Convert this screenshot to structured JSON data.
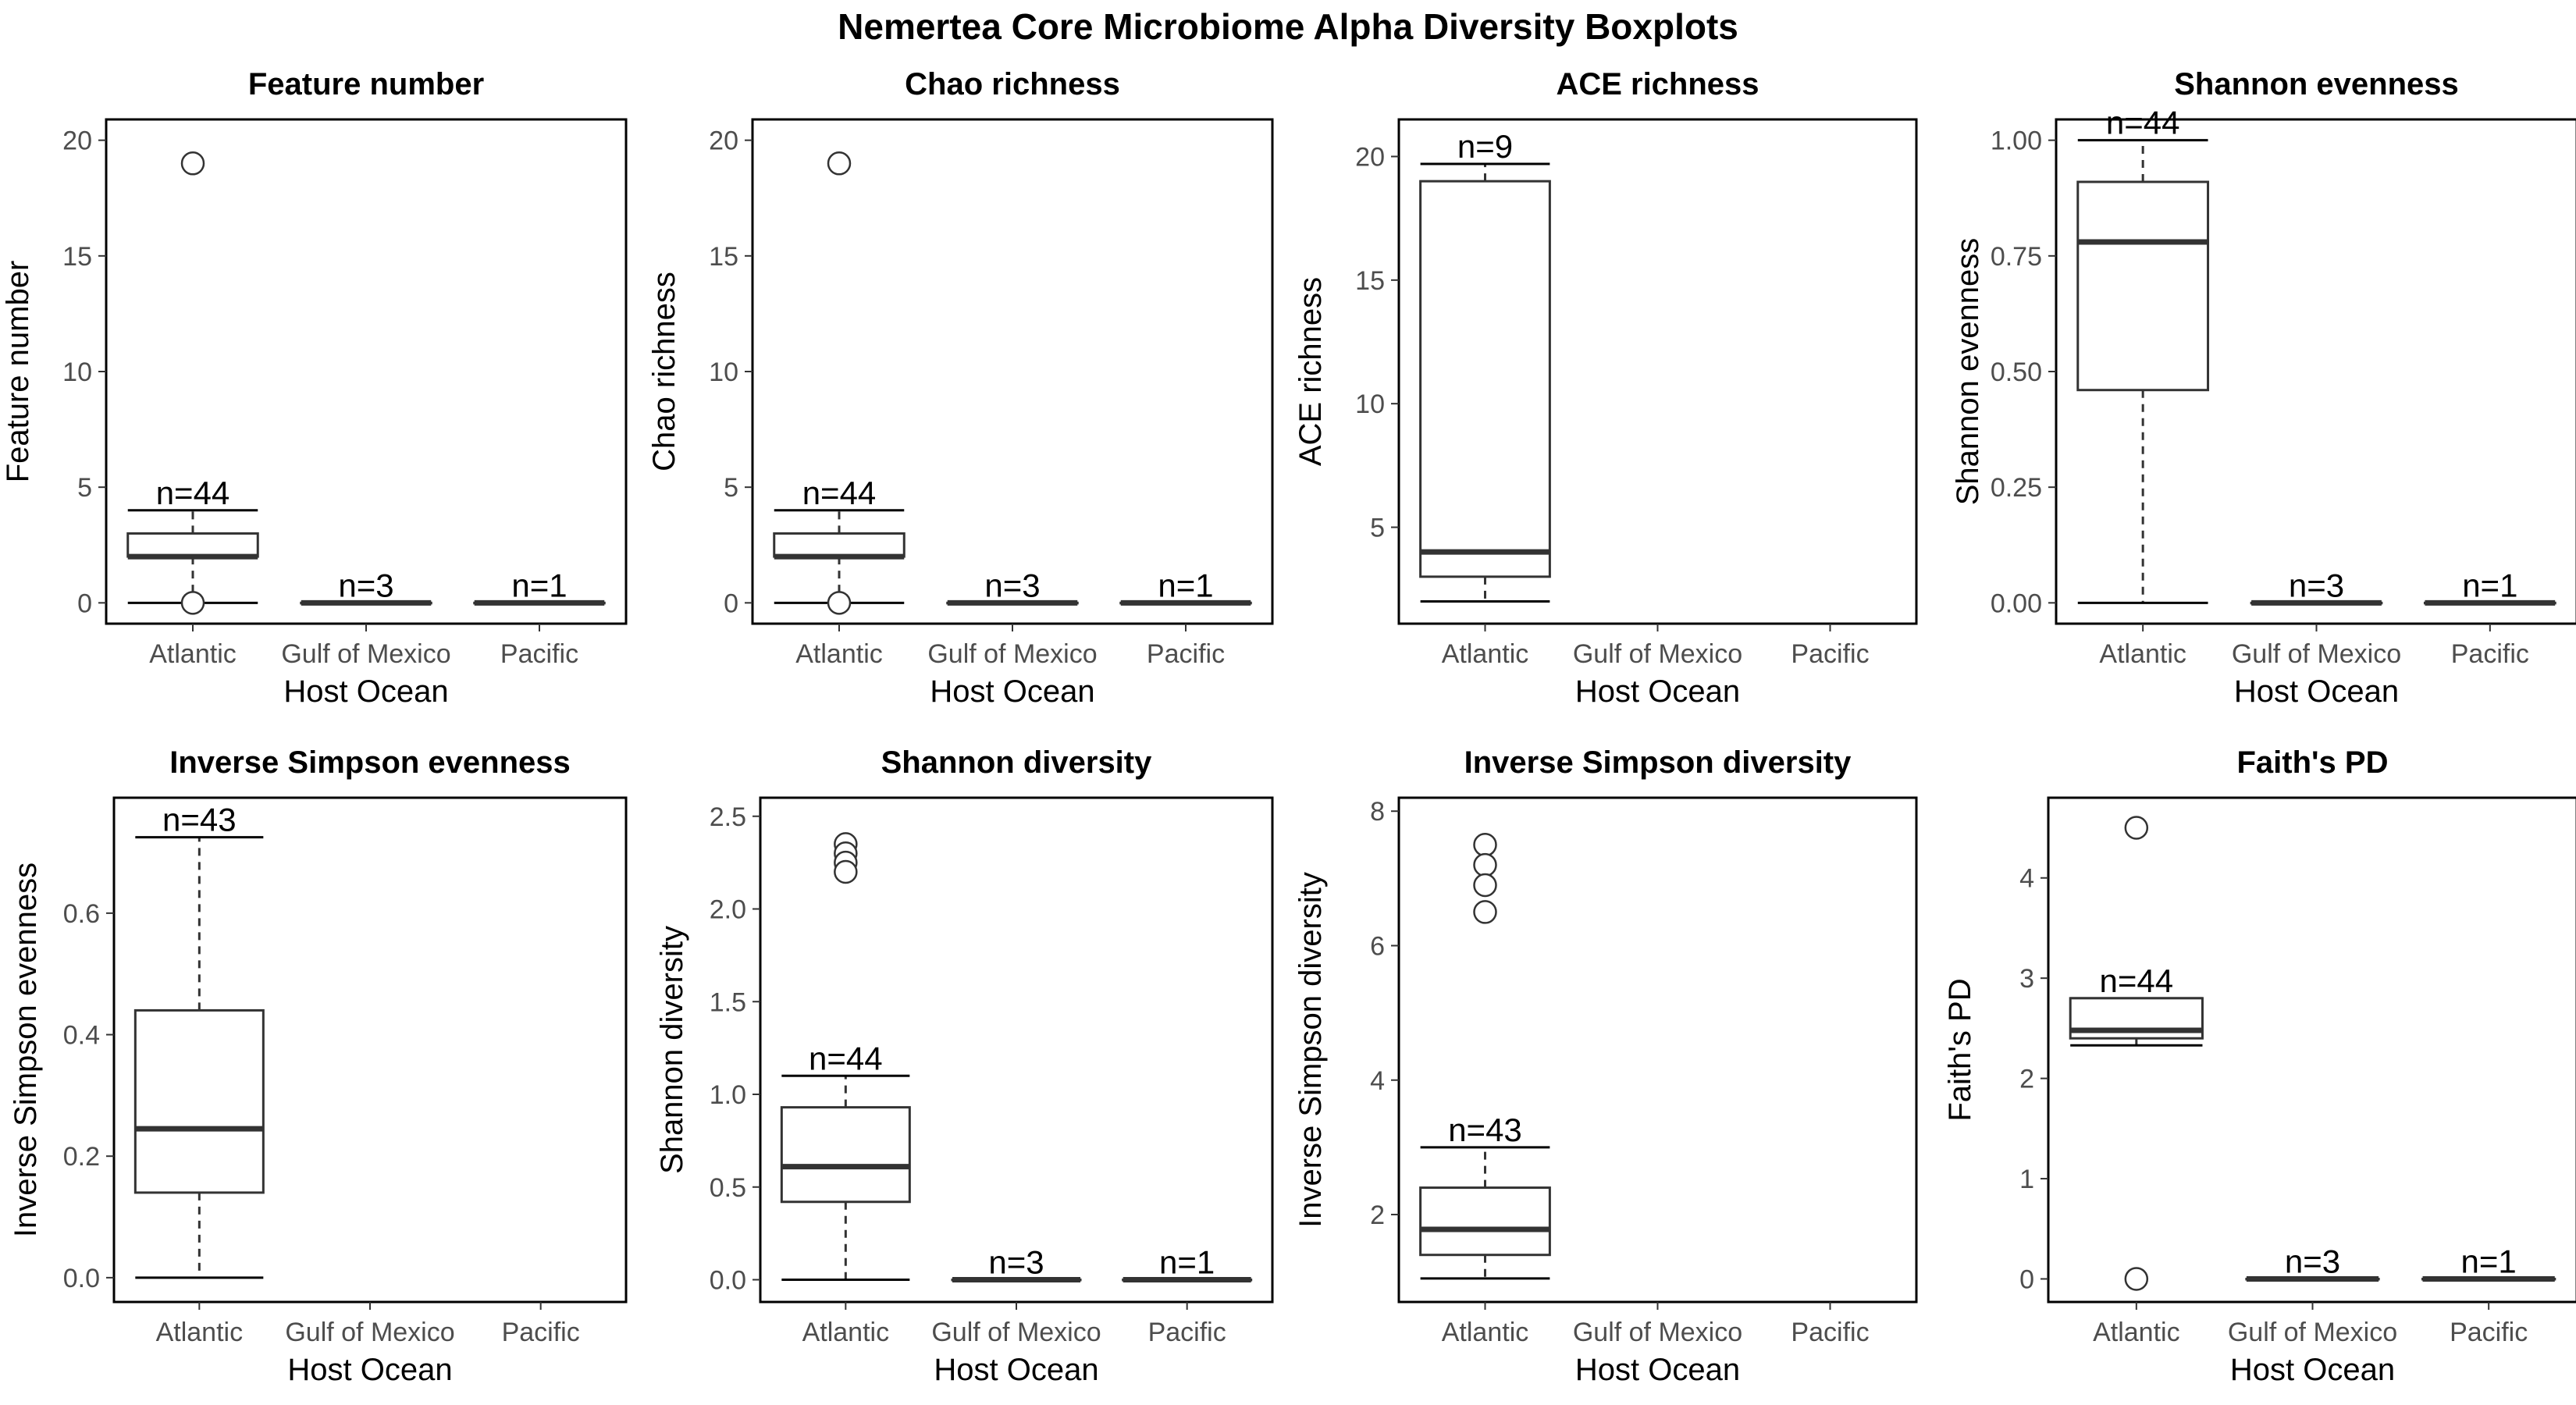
{
  "figure_title": "Nemertea Core Microbiome Alpha Diversity Boxplots",
  "chart_data": [
    {
      "type": "boxplot",
      "title": "Feature number",
      "xlabel": "Host Ocean",
      "ylabel": "Feature number",
      "categories": [
        "Atlantic",
        "Gulf of Mexico",
        "Pacific"
      ],
      "ylim": [
        -0.9,
        20.9
      ],
      "yticks": [
        0,
        5,
        10,
        15,
        20
      ],
      "ytick_labels": [
        "0",
        "5",
        "10",
        "15",
        "20"
      ],
      "boxes": [
        {
          "category": "Atlantic",
          "min": 0,
          "q1": 2,
          "median": 2,
          "q3": 3,
          "max": 4,
          "outliers": [
            19,
            0
          ],
          "n_label": "n=44"
        },
        {
          "category": "Gulf of Mexico",
          "min": 0,
          "q1": 0,
          "median": 0,
          "q3": 0,
          "max": 0,
          "outliers": [],
          "n_label": "n=3"
        },
        {
          "category": "Pacific",
          "min": 0,
          "q1": 0,
          "median": 0,
          "q3": 0,
          "max": 0,
          "outliers": [],
          "n_label": "n=1"
        }
      ]
    },
    {
      "type": "boxplot",
      "title": "Chao richness",
      "xlabel": "Host Ocean",
      "ylabel": "Chao richness",
      "categories": [
        "Atlantic",
        "Gulf of Mexico",
        "Pacific"
      ],
      "ylim": [
        -0.9,
        20.9
      ],
      "yticks": [
        0,
        5,
        10,
        15,
        20
      ],
      "ytick_labels": [
        "0",
        "5",
        "10",
        "15",
        "20"
      ],
      "boxes": [
        {
          "category": "Atlantic",
          "min": 0,
          "q1": 2,
          "median": 2,
          "q3": 3,
          "max": 4,
          "outliers": [
            19,
            0
          ],
          "n_label": "n=44"
        },
        {
          "category": "Gulf of Mexico",
          "min": 0,
          "q1": 0,
          "median": 0,
          "q3": 0,
          "max": 0,
          "outliers": [],
          "n_label": "n=3"
        },
        {
          "category": "Pacific",
          "min": 0,
          "q1": 0,
          "median": 0,
          "q3": 0,
          "max": 0,
          "outliers": [],
          "n_label": "n=1"
        }
      ]
    },
    {
      "type": "boxplot",
      "title": "ACE richness",
      "xlabel": "Host Ocean",
      "ylabel": "ACE richness",
      "categories": [
        "Atlantic",
        "Gulf of Mexico",
        "Pacific"
      ],
      "ylim": [
        1.1,
        21.5
      ],
      "yticks": [
        5,
        10,
        15,
        20
      ],
      "ytick_labels": [
        "5",
        "10",
        "15",
        "20"
      ],
      "boxes": [
        {
          "category": "Atlantic",
          "min": 2,
          "q1": 3,
          "median": 4,
          "q3": 19,
          "max": 19.7,
          "outliers": [],
          "n_label": "n=9"
        }
      ]
    },
    {
      "type": "boxplot",
      "title": "Shannon evenness",
      "xlabel": "Host Ocean",
      "ylabel": "Shannon evenness",
      "categories": [
        "Atlantic",
        "Gulf of Mexico",
        "Pacific"
      ],
      "ylim": [
        -0.045,
        1.045
      ],
      "yticks": [
        0,
        0.25,
        0.5,
        0.75,
        1.0
      ],
      "ytick_labels": [
        "0.00",
        "0.25",
        "0.50",
        "0.75",
        "1.00"
      ],
      "boxes": [
        {
          "category": "Atlantic",
          "min": 0,
          "q1": 0.46,
          "median": 0.78,
          "q3": 0.91,
          "max": 1.0,
          "outliers": [],
          "n_label": "n=44"
        },
        {
          "category": "Gulf of Mexico",
          "min": 0,
          "q1": 0,
          "median": 0,
          "q3": 0,
          "max": 0,
          "outliers": [],
          "n_label": "n=3"
        },
        {
          "category": "Pacific",
          "min": 0,
          "q1": 0,
          "median": 0,
          "q3": 0,
          "max": 0,
          "outliers": [],
          "n_label": "n=1"
        }
      ]
    },
    {
      "type": "boxplot",
      "title": "Inverse Simpson evenness",
      "xlabel": "Host Ocean",
      "ylabel": "Inverse Simpson evenness",
      "categories": [
        "Atlantic",
        "Gulf of Mexico",
        "Pacific"
      ],
      "ylim": [
        -0.04,
        0.79
      ],
      "yticks": [
        0,
        0.2,
        0.4,
        0.6
      ],
      "ytick_labels": [
        "0.0",
        "0.2",
        "0.4",
        "0.6"
      ],
      "boxes": [
        {
          "category": "Atlantic",
          "min": 0,
          "q1": 0.14,
          "median": 0.245,
          "q3": 0.44,
          "max": 0.725,
          "outliers": [],
          "n_label": "n=43"
        }
      ]
    },
    {
      "type": "boxplot",
      "title": "Shannon diversity",
      "xlabel": "Host Ocean",
      "ylabel": "Shannon diversity",
      "categories": [
        "Atlantic",
        "Gulf of Mexico",
        "Pacific"
      ],
      "ylim": [
        -0.12,
        2.6
      ],
      "yticks": [
        0,
        0.5,
        1.0,
        1.5,
        2.0,
        2.5
      ],
      "ytick_labels": [
        "0.0",
        "0.5",
        "1.0",
        "1.5",
        "2.0",
        "2.5"
      ],
      "boxes": [
        {
          "category": "Atlantic",
          "min": 0,
          "q1": 0.42,
          "median": 0.61,
          "q3": 0.93,
          "max": 1.1,
          "outliers": [
            2.35,
            2.3,
            2.25,
            2.2
          ],
          "n_label": "n=44"
        },
        {
          "category": "Gulf of Mexico",
          "min": 0,
          "q1": 0,
          "median": 0,
          "q3": 0,
          "max": 0,
          "outliers": [],
          "n_label": "n=3"
        },
        {
          "category": "Pacific",
          "min": 0,
          "q1": 0,
          "median": 0,
          "q3": 0,
          "max": 0,
          "outliers": [],
          "n_label": "n=1"
        }
      ]
    },
    {
      "type": "boxplot",
      "title": "Inverse Simpson diversity",
      "xlabel": "Host Ocean",
      "ylabel": "Inverse Simpson diversity",
      "categories": [
        "Atlantic",
        "Gulf of Mexico",
        "Pacific"
      ],
      "ylim": [
        0.7,
        8.2
      ],
      "yticks": [
        2,
        4,
        6,
        8
      ],
      "ytick_labels": [
        "2",
        "4",
        "6",
        "8"
      ],
      "boxes": [
        {
          "category": "Atlantic",
          "min": 1.05,
          "q1": 1.4,
          "median": 1.78,
          "q3": 2.4,
          "max": 3.0,
          "outliers": [
            7.5,
            7.2,
            6.9,
            6.5
          ],
          "n_label": "n=43"
        }
      ]
    },
    {
      "type": "boxplot",
      "title": "Faith's PD",
      "xlabel": "Host Ocean",
      "ylabel": "Faith's PD",
      "categories": [
        "Atlantic",
        "Gulf of Mexico",
        "Pacific"
      ],
      "ylim": [
        -0.23,
        4.8
      ],
      "yticks": [
        0,
        1,
        2,
        3,
        4
      ],
      "ytick_labels": [
        "0",
        "1",
        "2",
        "3",
        "4"
      ],
      "boxes": [
        {
          "category": "Atlantic",
          "min": 2.33,
          "q1": 2.4,
          "median": 2.48,
          "q3": 2.8,
          "max": 2.8,
          "outliers": [
            4.5,
            0
          ],
          "n_label": "n=44"
        },
        {
          "category": "Gulf of Mexico",
          "min": 0,
          "q1": 0,
          "median": 0,
          "q3": 0,
          "max": 0,
          "outliers": [],
          "n_label": "n=3"
        },
        {
          "category": "Pacific",
          "min": 0,
          "q1": 0,
          "median": 0,
          "q3": 0,
          "max": 0,
          "outliers": [],
          "n_label": "n=1"
        }
      ]
    }
  ]
}
